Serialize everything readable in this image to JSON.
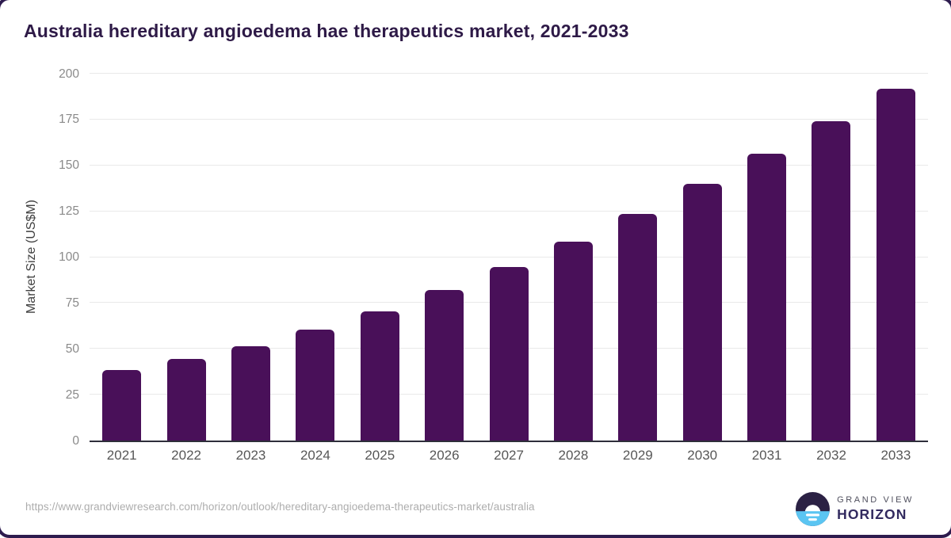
{
  "title": "Australia hereditary angioedema hae therapeutics market, 2021-2033",
  "chart_data": {
    "type": "bar",
    "title": "Australia hereditary angioedema hae therapeutics market, 2021-2033",
    "categories": [
      "2021",
      "2022",
      "2023",
      "2024",
      "2025",
      "2026",
      "2027",
      "2028",
      "2029",
      "2030",
      "2031",
      "2032",
      "2033"
    ],
    "values": [
      38.3,
      44.6,
      51.6,
      60.4,
      70.6,
      82.1,
      94.7,
      108.4,
      123.7,
      139.8,
      156.4,
      174.1,
      192.0
    ],
    "xlabel": "",
    "ylabel": "Market Size (US$M)",
    "ylim": [
      0,
      200
    ],
    "tick_step": 25,
    "grid": true,
    "legend": false,
    "bar_color": "#491059",
    "axis_line_color": "#2e2e3a",
    "gridline_color": "#e9e9e9"
  },
  "footer": {
    "source_url": "https://www.grandviewresearch.com/horizon/outlook/hereditary-angioedema-therapeutics-market/australia",
    "logo": {
      "brand_line1": "GRAND VIEW",
      "brand_line2": "HORIZON",
      "icon": "horizon-sun-icon",
      "icon_navy": "#2b2144",
      "icon_blue": "#5bc5f2"
    }
  },
  "colors": {
    "title_text": "#2e1a47",
    "accent_purple": "#491059",
    "brand_navy": "#322a5f",
    "brand_blue": "#5bc5f2"
  }
}
